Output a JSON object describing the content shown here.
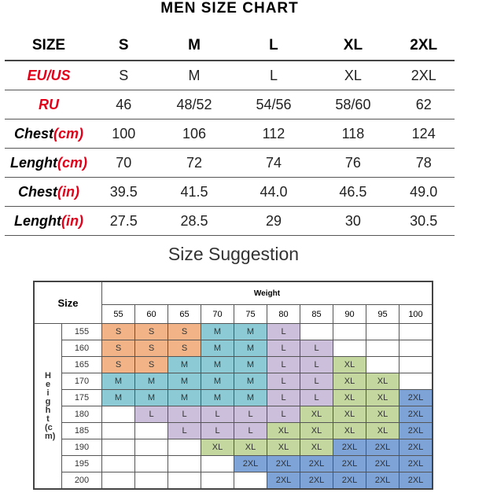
{
  "title": "MEN SIZE CHART",
  "size_table": {
    "header": [
      "SIZE",
      "S",
      "M",
      "L",
      "XL",
      "2XL"
    ],
    "rows": [
      {
        "label": "EU/US",
        "unit": "",
        "values": [
          "S",
          "M",
          "L",
          "XL",
          "2XL"
        ]
      },
      {
        "label": "RU",
        "unit": "",
        "values": [
          "46",
          "48/52",
          "54/56",
          "58/60",
          "62"
        ]
      },
      {
        "label": "Chest",
        "unit": "(cm)",
        "values": [
          "100",
          "106",
          "112",
          "118",
          "124"
        ]
      },
      {
        "label": "Lenght",
        "unit": "(cm)",
        "values": [
          "70",
          "72",
          "74",
          "76",
          "78"
        ]
      },
      {
        "label": "Chest",
        "unit": "(in)",
        "values": [
          "39.5",
          "41.5",
          "44.0",
          "46.5",
          "49.0"
        ]
      },
      {
        "label": "Lenght",
        "unit": "(in)",
        "values": [
          "27.5",
          "28.5",
          "29",
          "30",
          "30.5"
        ]
      }
    ]
  },
  "suggestion_title": "Size Suggestion",
  "grid": {
    "corner": "Size",
    "weight_label": "Weight",
    "height_label": "Height(cm)",
    "weights": [
      "55",
      "60",
      "65",
      "70",
      "75",
      "80",
      "85",
      "90",
      "95",
      "100"
    ],
    "heights": [
      "155",
      "160",
      "165",
      "170",
      "175",
      "180",
      "185",
      "190",
      "195",
      "200"
    ],
    "cells": [
      [
        "S",
        "S",
        "S",
        "M",
        "M",
        "L",
        "",
        "",
        "",
        ""
      ],
      [
        "S",
        "S",
        "S",
        "M",
        "M",
        "L",
        "L",
        "",
        "",
        ""
      ],
      [
        "S",
        "S",
        "M",
        "M",
        "M",
        "L",
        "L",
        "XL",
        "",
        ""
      ],
      [
        "M",
        "M",
        "M",
        "M",
        "M",
        "L",
        "L",
        "XL",
        "XL",
        ""
      ],
      [
        "M",
        "M",
        "M",
        "M",
        "M",
        "L",
        "L",
        "XL",
        "XL",
        "2XL"
      ],
      [
        "",
        "L",
        "L",
        "L",
        "L",
        "L",
        "XL",
        "XL",
        "XL",
        "2XL"
      ],
      [
        "",
        "",
        "L",
        "L",
        "L",
        "XL",
        "XL",
        "XL",
        "XL",
        "2XL"
      ],
      [
        "",
        "",
        "",
        "XL",
        "XL",
        "XL",
        "XL",
        "2XL",
        "2XL",
        "2XL"
      ],
      [
        "",
        "",
        "",
        "",
        "2XL",
        "2XL",
        "2XL",
        "2XL",
        "2XL",
        "2XL"
      ],
      [
        "",
        "",
        "",
        "",
        "",
        "2XL",
        "2XL",
        "2XL",
        "2XL",
        "2XL"
      ]
    ],
    "colors": {
      "S": "#f2b486",
      "M": "#8ccad5",
      "L": "#cbbfdc",
      "XL": "#c3d79e",
      "2XL": "#7ea3d6"
    }
  }
}
